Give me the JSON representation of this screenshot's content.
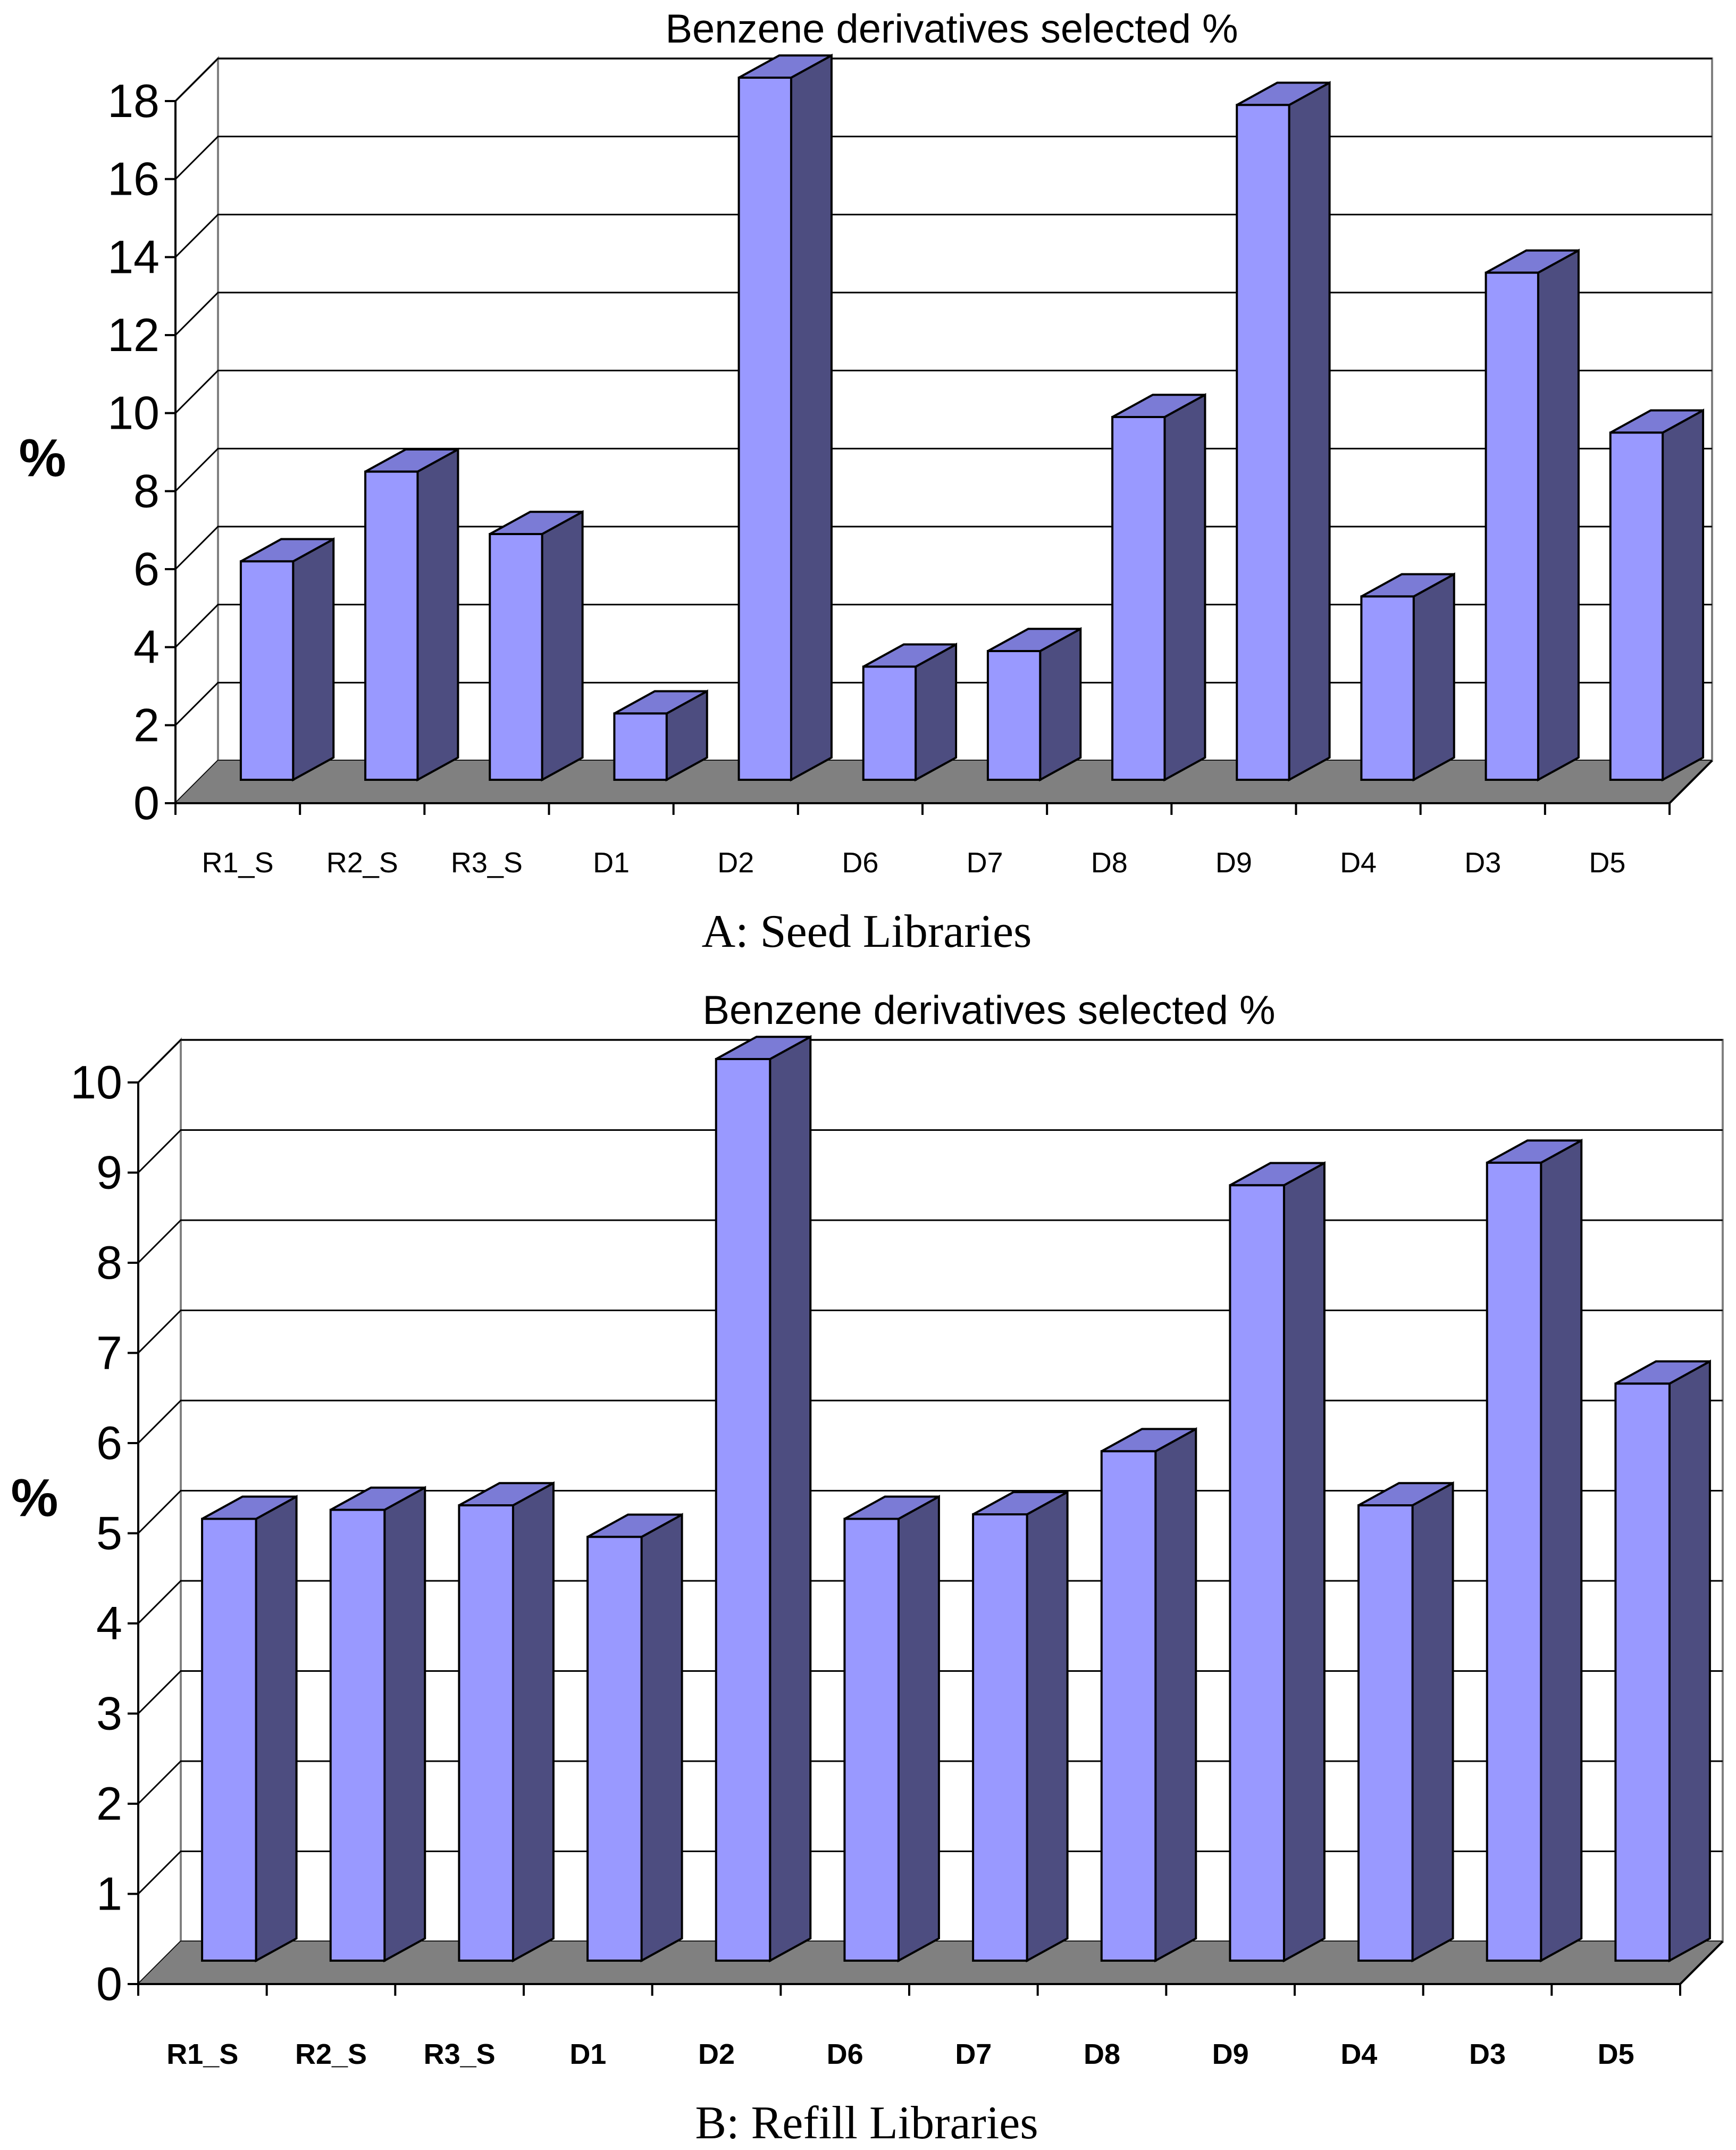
{
  "chart_data": [
    {
      "type": "bar",
      "panel": "A",
      "title": "Benzene derivatives selected %",
      "ylabel": "%",
      "xlabel": "",
      "caption": "A: Seed Libraries",
      "ylim": [
        0,
        18
      ],
      "yticks": [
        0,
        2,
        4,
        6,
        8,
        10,
        12,
        14,
        16,
        18
      ],
      "grid": true,
      "categories": [
        "R1_S",
        "R2_S",
        "R3_S",
        "D1",
        "D2",
        "D6",
        "D7",
        "D8",
        "D9",
        "D4",
        "D3",
        "D5"
      ],
      "values": [
        5.6,
        7.9,
        6.3,
        1.7,
        18.0,
        2.9,
        3.3,
        9.3,
        17.3,
        4.7,
        13.0,
        8.9
      ],
      "bar_color": "#9999ff",
      "bar_side_color": "#4d4d80",
      "bar_top_color": "#7b7bd6",
      "floor_color": "#808080"
    },
    {
      "type": "bar",
      "panel": "B",
      "title": "Benzene derivatives selected %",
      "ylabel": "%",
      "xlabel": "",
      "caption": "B: Refill Libraries",
      "ylim": [
        0,
        10
      ],
      "yticks": [
        0,
        1,
        2,
        3,
        4,
        5,
        6,
        7,
        8,
        9,
        10
      ],
      "grid": true,
      "categories": [
        "R1_S",
        "R2_S",
        "R3_S",
        "D1",
        "D2",
        "D6",
        "D7",
        "D8",
        "D9",
        "D4",
        "D3",
        "D5"
      ],
      "values": [
        4.9,
        5.0,
        5.05,
        4.7,
        10.0,
        4.9,
        4.95,
        5.65,
        8.6,
        5.05,
        8.85,
        6.4
      ],
      "bar_color": "#9999ff",
      "bar_side_color": "#4d4d80",
      "bar_top_color": "#7b7bd6",
      "floor_color": "#808080"
    }
  ]
}
